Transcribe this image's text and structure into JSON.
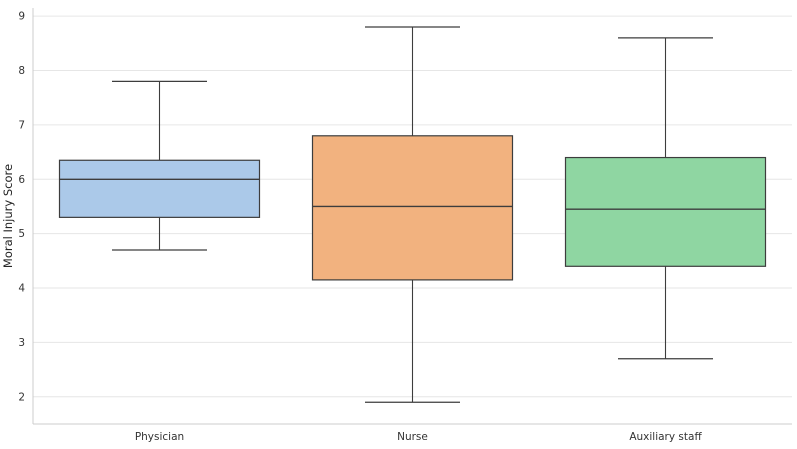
{
  "chart_data": {
    "type": "boxplot",
    "title": "",
    "xlabel": "",
    "ylabel": "Moral Injury Score",
    "ylim": [
      1.5,
      9.15
    ],
    "yticks": [
      2,
      3,
      4,
      5,
      6,
      7,
      8,
      9
    ],
    "grid": "horizontal",
    "legend": "none",
    "categories": [
      "Physician",
      "Nurse",
      "Auxiliary staff"
    ],
    "series": [
      {
        "name": "Physician",
        "whisker_low": 4.7,
        "q1": 5.3,
        "median": 6.0,
        "q3": 6.35,
        "whisker_high": 7.8,
        "color": "#abc9e9"
      },
      {
        "name": "Nurse",
        "whisker_low": 1.9,
        "q1": 4.15,
        "median": 5.5,
        "q3": 6.8,
        "whisker_high": 8.8,
        "color": "#f2b27f"
      },
      {
        "name": "Auxiliary staff",
        "whisker_low": 2.7,
        "q1": 4.4,
        "median": 5.45,
        "q3": 6.4,
        "whisker_high": 8.6,
        "color": "#8fd6a2"
      }
    ],
    "colors": {
      "box_edge": "#3d3d3d",
      "grid": "#e6e6e6",
      "spine": "#cccccc",
      "tick_label": "#333333",
      "axis_label": "#262626"
    }
  }
}
